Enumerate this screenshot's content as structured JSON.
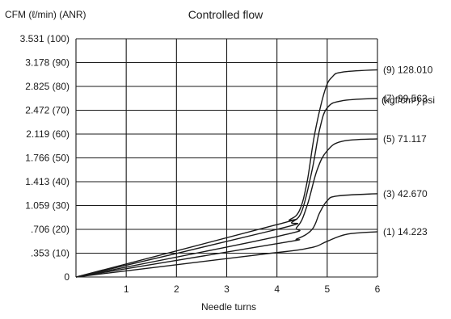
{
  "chart_data": {
    "type": "line",
    "title": "Controlled flow",
    "ylabel": "CFM (ℓ/min) (ANR)",
    "xlabel": "Needle turns",
    "legend_title": "(kgf/cm²) psi",
    "xlim": [
      0,
      6
    ],
    "ylim": [
      0,
      100
    ],
    "x_ticks": [
      "1",
      "2",
      "3",
      "4",
      "5",
      "6"
    ],
    "y_ticks": [
      "0",
      ".353 (10)",
      ".706 (20)",
      "1.059 (30)",
      "1.413 (40)",
      "1.766 (50)",
      "2.119 (60)",
      "2.472 (70)",
      "2.825 (80)",
      "3.178 (90)",
      "3.531 (100)"
    ],
    "grid": true,
    "series": [
      {
        "name": "(9) 128.010",
        "x": [
          0,
          4,
          4.25,
          4.45,
          4.6,
          4.75,
          4.95,
          5.1,
          5.3,
          6
        ],
        "y": [
          0,
          22,
          24,
          28,
          40,
          60,
          78,
          84,
          86,
          87
        ]
      },
      {
        "name": "(7) 99.563",
        "x": [
          0,
          4,
          4.3,
          4.5,
          4.7,
          4.85,
          5.0,
          5.3,
          6
        ],
        "y": [
          0,
          20,
          23,
          28,
          45,
          62,
          71,
          74,
          75
        ]
      },
      {
        "name": "(5) 71.117",
        "x": [
          0,
          4,
          4.4,
          4.6,
          4.8,
          5.0,
          5.3,
          6
        ],
        "y": [
          0,
          17,
          21,
          30,
          45,
          53,
          57,
          58
        ]
      },
      {
        "name": "(3) 42.670",
        "x": [
          0,
          4,
          4.4,
          4.7,
          4.85,
          5.0,
          5.2,
          6
        ],
        "y": [
          0,
          14,
          16,
          20,
          27,
          32,
          34,
          35
        ]
      },
      {
        "name": "(1) 14.223",
        "x": [
          0,
          3.5,
          4.3,
          4.6,
          4.8,
          5.0,
          5.4,
          6
        ],
        "y": [
          0,
          9,
          11,
          12,
          13,
          15,
          18,
          19
        ]
      }
    ]
  }
}
